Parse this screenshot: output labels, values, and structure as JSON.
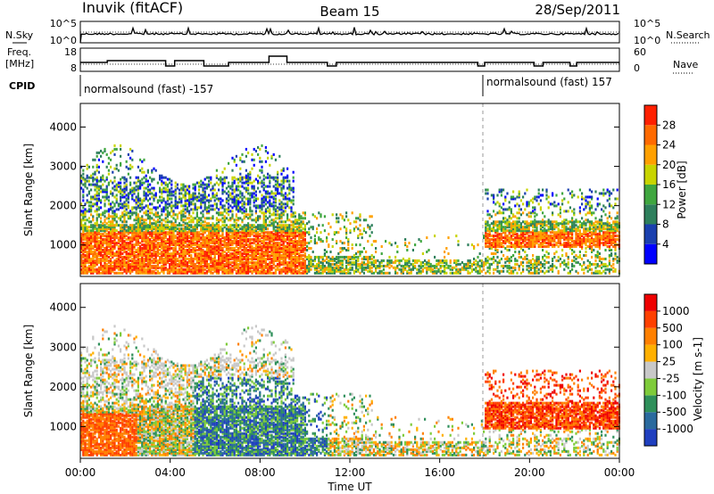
{
  "header": {
    "station": "Inuvik (fitACF)",
    "beam": "Beam 15",
    "date": "28/Sep/2011"
  },
  "noise_panel": {
    "left_label": "N.Sky",
    "right_label": "N.Search",
    "left_ticks": [
      "10^5",
      "10^0"
    ],
    "right_ticks": [
      "10^5",
      "10^0"
    ]
  },
  "freq_panel": {
    "left_label_1": "Freq.",
    "left_label_2": "[MHz]",
    "left_ticks": [
      "18",
      "8"
    ],
    "right_label": "Nave",
    "right_ticks": [
      "60",
      "0"
    ]
  },
  "cpid": {
    "label": "CPID",
    "segments": [
      {
        "text": "normalsound (fast) -157",
        "start_hour": 0
      },
      {
        "text": "normalsound (fast) 157",
        "start_hour": 18
      }
    ]
  },
  "time_axis": {
    "title": "Time UT",
    "ticks": [
      "00:00",
      "04:00",
      "08:00",
      "12:00",
      "16:00",
      "20:00",
      "00:00"
    ]
  },
  "chart_data": [
    {
      "type": "heatmap",
      "name": "power-panel",
      "ylabel": "Slant Range [km]",
      "y_ticks": [
        1000,
        2000,
        3000,
        4000
      ],
      "ylim": [
        200,
        4600
      ],
      "xlim": [
        0,
        24
      ],
      "colorbar": {
        "title": "Power [dB]",
        "labels": [
          "28",
          "24",
          "20",
          "16",
          "12",
          "8",
          "4"
        ],
        "colors": [
          "#0000ff",
          "#1a3fae",
          "#2e7f5c",
          "#3fa63f",
          "#c8d400",
          "#ffa000",
          "#ff6a00",
          "#ff2000"
        ]
      }
    },
    {
      "type": "heatmap",
      "name": "velocity-panel",
      "ylabel": "Slant Range [km]",
      "y_ticks": [
        1000,
        2000,
        3000,
        4000
      ],
      "ylim": [
        200,
        4600
      ],
      "xlim": [
        0,
        24
      ],
      "colorbar": {
        "title": "Velocity [m s-1]",
        "labels": [
          "1000",
          "500",
          "100",
          "25",
          "-25",
          "-100",
          "-500",
          "-1000"
        ],
        "colors": [
          "#1f3fbf",
          "#2a6a9e",
          "#2e8f5a",
          "#7ecb3a",
          "#c8c8c8",
          "#ffb000",
          "#ff8000",
          "#ff4000",
          "#ee0000"
        ]
      }
    }
  ]
}
